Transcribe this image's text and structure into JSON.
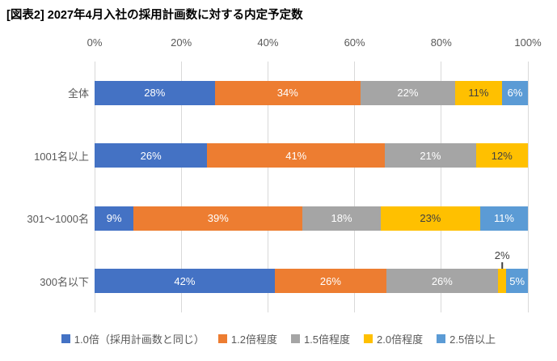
{
  "title": "[図表2] 2027年4月入社の採用計画数に対する内定予定数",
  "colors": {
    "gridline": "#D9D9D9",
    "axis_text": "#595959",
    "title_text": "#000000",
    "callout": "#404040"
  },
  "chart_data": {
    "type": "bar",
    "stacked": true,
    "orientation": "horizontal",
    "title": "[図表2] 2027年4月入社の採用計画数に対する内定予定数",
    "categories": [
      "全体",
      "1001名以上",
      "301～1000名",
      "300名以下"
    ],
    "series": [
      {
        "name": "1.0倍（採用計画数と同じ）",
        "color": "#4472C4",
        "label_color": "#FFFFFF",
        "values": [
          28,
          26,
          9,
          42
        ]
      },
      {
        "name": "1.2倍程度",
        "color": "#ED7D31",
        "label_color": "#FFFFFF",
        "values": [
          34,
          41,
          39,
          26
        ]
      },
      {
        "name": "1.5倍程度",
        "color": "#A5A5A5",
        "label_color": "#FFFFFF",
        "values": [
          22,
          21,
          18,
          26
        ]
      },
      {
        "name": "2.0倍程度",
        "color": "#FFC000",
        "label_color": "#404040",
        "values": [
          11,
          12,
          23,
          2
        ]
      },
      {
        "name": "2.5倍以上",
        "color": "#5B9BD5",
        "label_color": "#FFFFFF",
        "values": [
          6,
          0,
          11,
          5
        ]
      }
    ],
    "label_format": "{value}%",
    "x_ticks": [
      "0%",
      "20%",
      "40%",
      "60%",
      "80%",
      "100%"
    ],
    "xlim": [
      0,
      100
    ],
    "grid": true,
    "legend_position": "bottom",
    "callouts": [
      {
        "category_index": 3,
        "series_index": 3,
        "label": "2%",
        "position": "above"
      }
    ]
  }
}
